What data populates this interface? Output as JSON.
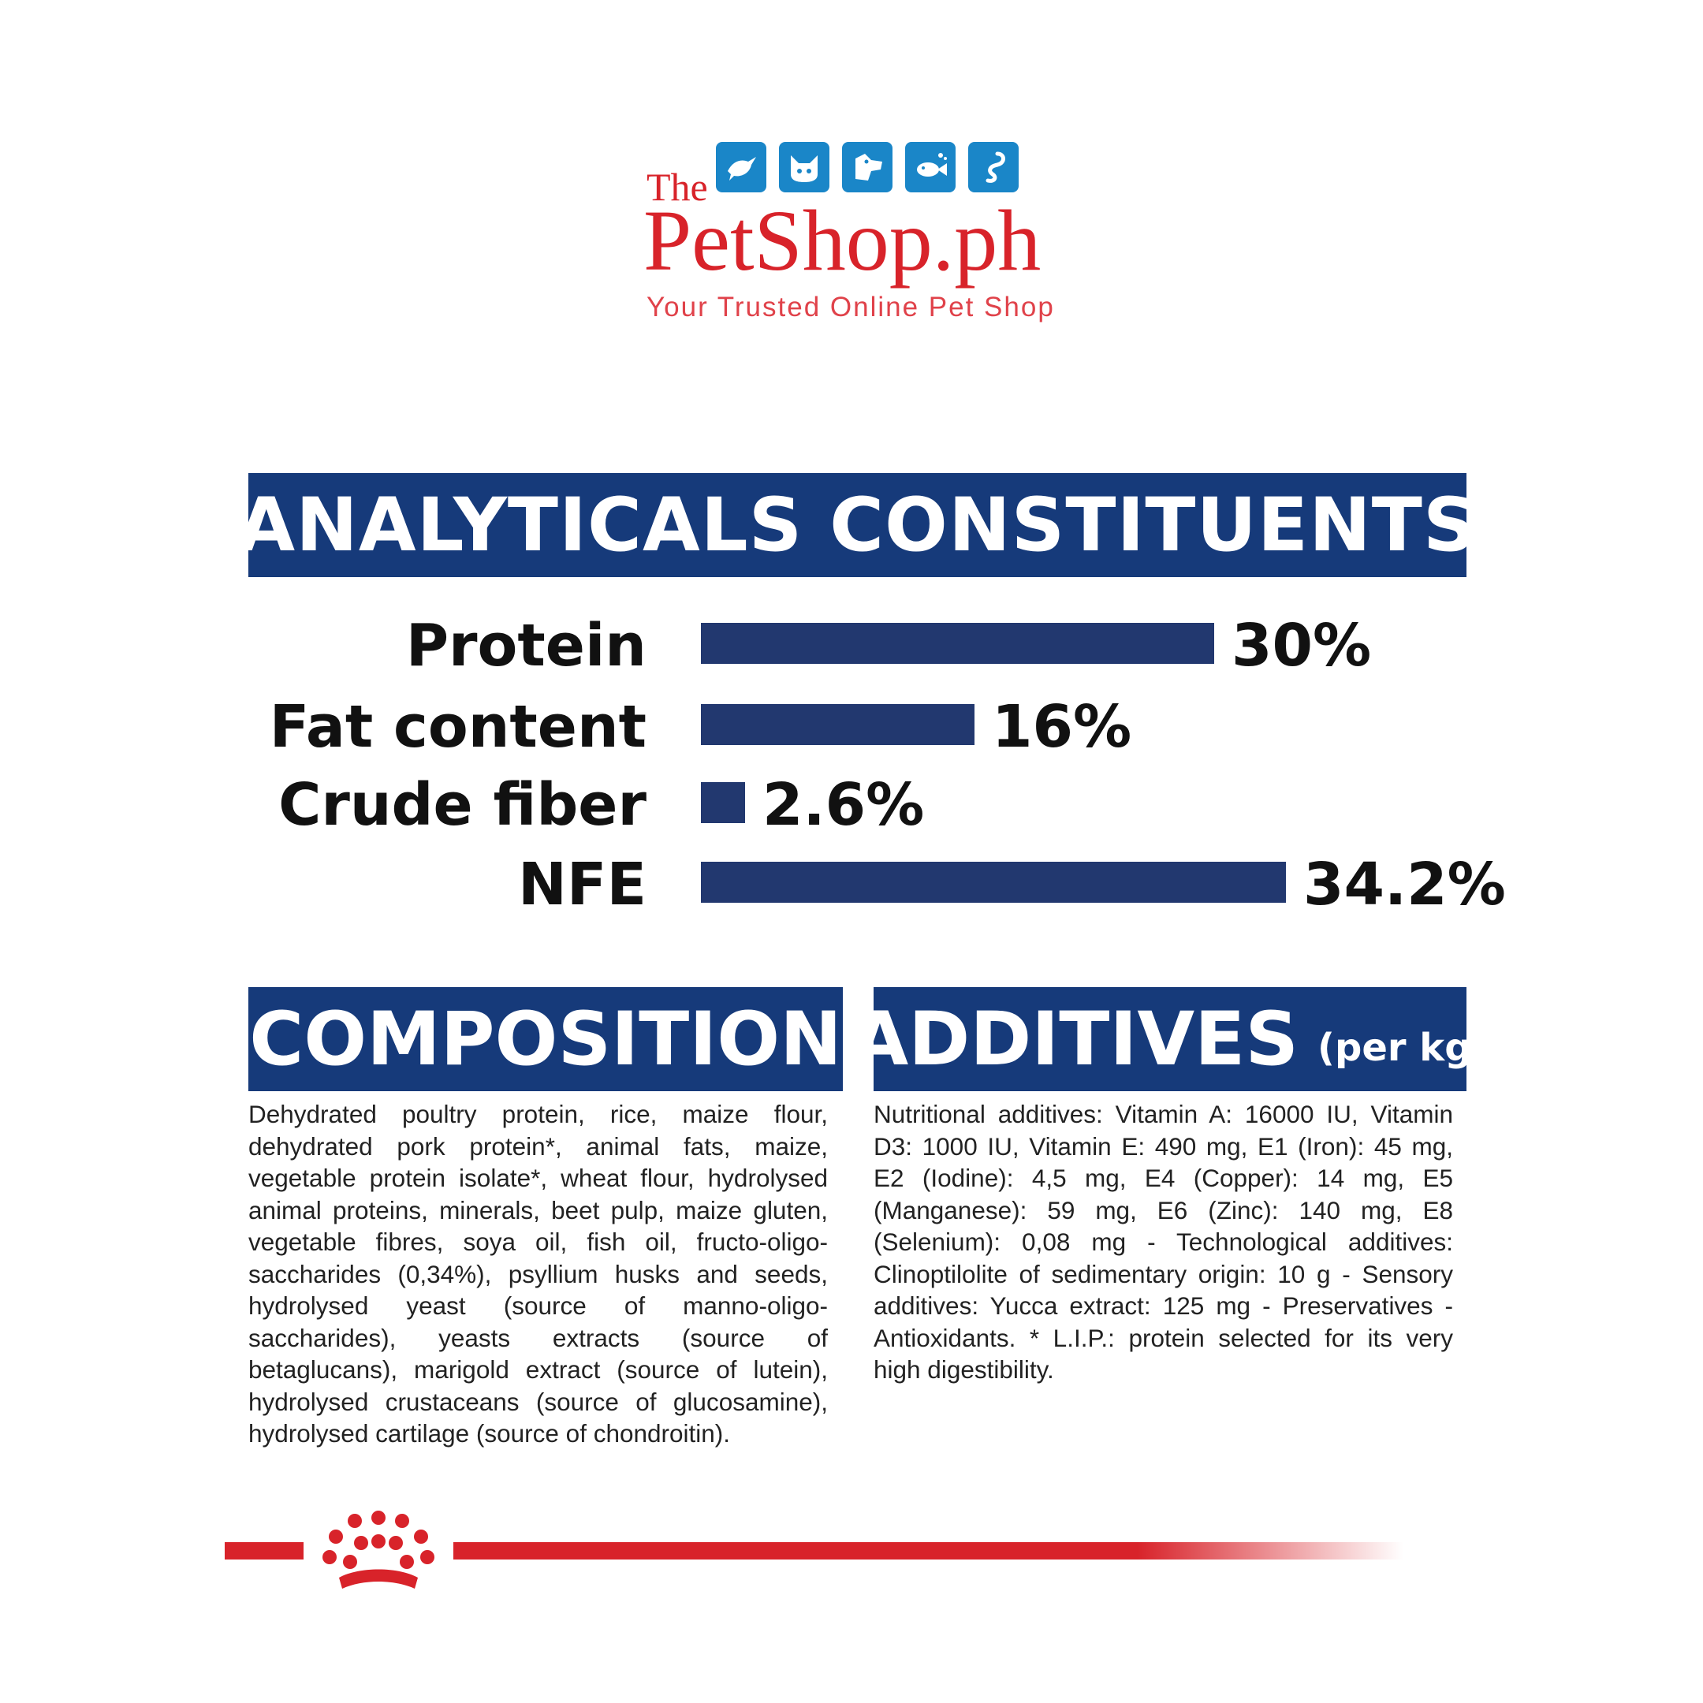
{
  "logo": {
    "the": "The",
    "name": "PetShop.ph",
    "tagline": "Your Trusted Online Pet Shop",
    "icons": [
      "bird-icon",
      "cat-icon",
      "dog-icon",
      "fish-icon",
      "snake-icon"
    ]
  },
  "analytics": {
    "title": "ANALYTICALS CONSTITUENTS",
    "rows": [
      {
        "label": "Protein",
        "value": "30%"
      },
      {
        "label": "Fat content",
        "value": "16%"
      },
      {
        "label": "Crude fiber",
        "value": "2.6%"
      },
      {
        "label": "NFE",
        "value": "34.2%"
      }
    ]
  },
  "chart_data": {
    "type": "bar",
    "orientation": "horizontal",
    "categories": [
      "Protein",
      "Fat content",
      "Crude fiber",
      "NFE"
    ],
    "values": [
      30,
      16,
      2.6,
      34.2
    ],
    "unit": "%",
    "title": "ANALYTICALS CONSTITUENTS",
    "xlabel": "",
    "ylabel": "",
    "xlim": [
      0,
      34.2
    ],
    "grid": false,
    "bar_color": "#22386f"
  },
  "composition": {
    "title": "COMPOSITION",
    "text": "Dehydrated poultry protein, rice, maize flour, dehydrated pork protein*, animal fats, maize, vegetable protein isolate*, wheat flour, hydrolysed animal proteins, minerals, beet pulp, maize gluten, vegetable fibres, soya oil, fish oil, fructo-oligo-saccharides (0,34%), psyllium husks and seeds, hydrolysed yeast (source of manno-oligo-saccharides), yeasts extracts (source of betaglucans), marigold extract (source of lutein), hydrolysed crustaceans (source of glucosamine), hydrolysed cartilage (source of chondroitin)."
  },
  "additives": {
    "title": "ADDITIVES",
    "title_suffix": "(per kg)",
    "text": "Nutritional additives: Vitamin A: 16000 IU, Vitamin D3: 1000 IU, Vitamin E: 490 mg, E1 (Iron): 45 mg, E2 (Iodine): 4,5 mg, E4 (Copper): 14 mg, E5 (Manganese): 59 mg, E6 (Zinc): 140 mg, E8 (Selenium): 0,08 mg - Technological additives: Clinoptilolite of sedimentary origin: 10 g - Sensory additives: Yucca extract: 125 mg - Preservatives - Antioxidants. * L.I.P.: protein selected for its very high digestibility."
  },
  "colors": {
    "banner": "#163a7a",
    "bar": "#22386f",
    "brand_red": "#d8232a",
    "icon_blue": "#1a86c8"
  },
  "footer": {
    "crown": "royal-canin-crown-icon"
  }
}
